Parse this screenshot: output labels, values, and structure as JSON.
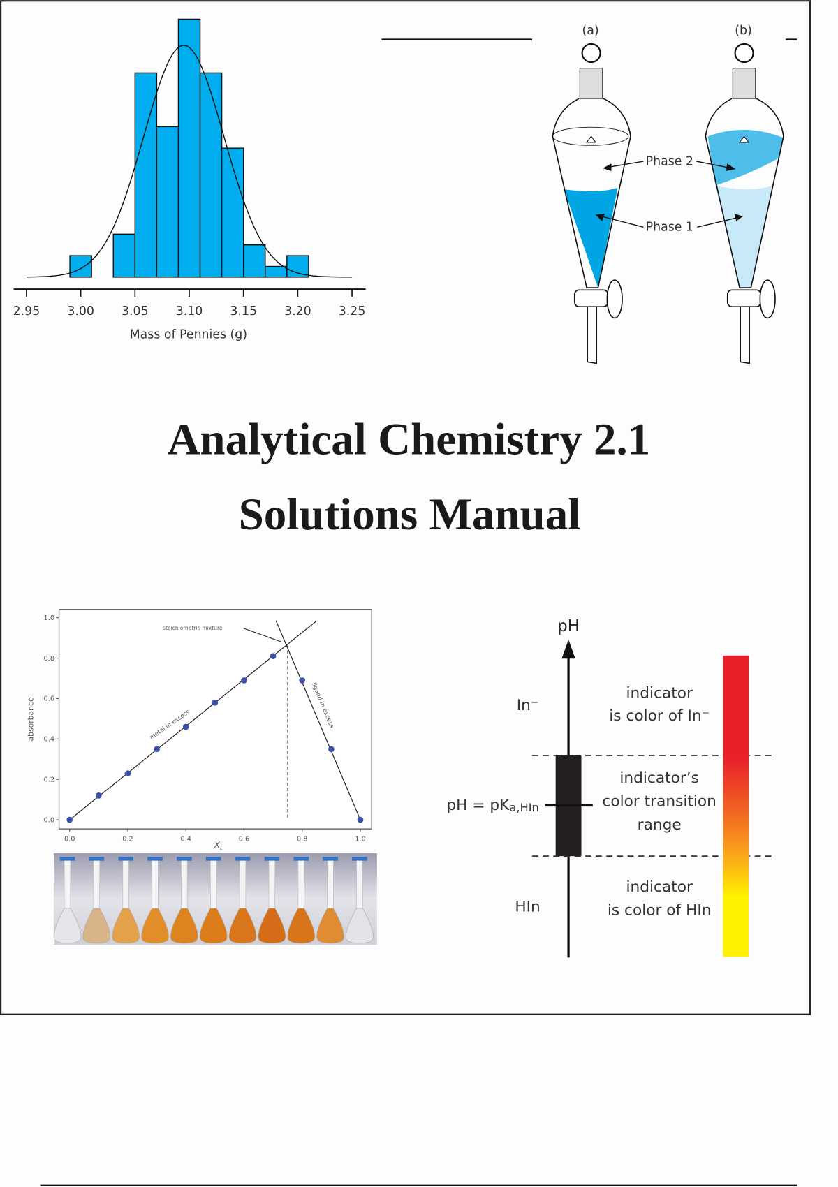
{
  "title": {
    "line1": "Analytical Chemistry 2.1",
    "line2": "Solutions Manual"
  },
  "funnels": {
    "label_a": "(a)",
    "label_b": "(b)",
    "phase2": "Phase 2",
    "phase1": "Phase 1",
    "colors": {
      "phase1_a": "#00a6e4",
      "phase2_b": "#4fbde9",
      "phase1_b": "#c7e9f8"
    }
  },
  "ph_diagram": {
    "axis_label": "pH",
    "in_minus": "In⁻",
    "hin": "HIn",
    "pka_label": "pH = pK",
    "pka_sub": "a,HIn",
    "top_text": [
      "indicator",
      "is color of In⁻"
    ],
    "mid_text": [
      "indicator’s",
      "color transition",
      "range"
    ],
    "bottom_text": [
      "indicator",
      "is color of HIn"
    ],
    "colors": {
      "top": "#e8202a",
      "mid": "#f7941d",
      "bottom": "#fff200"
    }
  },
  "chart_data": [
    {
      "type": "bar",
      "title": "",
      "xlabel": "Mass of Pennies (g)",
      "ylabel": "",
      "xlim": [
        2.95,
        3.25
      ],
      "xticks": [
        "2.95",
        "3.00",
        "3.05",
        "3.10",
        "3.15",
        "3.20",
        "3.25"
      ],
      "bin_width": 0.02,
      "bin_centers": [
        3.0,
        3.02,
        3.04,
        3.06,
        3.08,
        3.1,
        3.12,
        3.14,
        3.16,
        3.18,
        3.2
      ],
      "values": [
        2,
        0,
        4,
        19,
        14,
        24,
        19,
        12,
        3,
        1,
        2
      ],
      "fit": {
        "type": "normal",
        "mean": 3.095,
        "sd": 0.037
      },
      "color": "#00aeef"
    },
    {
      "type": "scatter",
      "title": "",
      "xlabel": "X",
      "xlabel_sub": "L",
      "ylabel": "absorbance",
      "xlim": [
        0,
        1
      ],
      "ylim": [
        0,
        1
      ],
      "xticks": [
        "0.0",
        "0.2",
        "0.4",
        "0.6",
        "0.8",
        "1.0"
      ],
      "yticks": [
        "0.0",
        "0.2",
        "0.4",
        "0.6",
        "0.8",
        "1.0"
      ],
      "x": [
        0.0,
        0.1,
        0.2,
        0.3,
        0.4,
        0.5,
        0.6,
        0.7,
        0.8,
        0.9,
        1.0
      ],
      "y": [
        0.0,
        0.12,
        0.23,
        0.35,
        0.46,
        0.58,
        0.69,
        0.81,
        0.69,
        0.35,
        0.0
      ],
      "fit_lines": [
        {
          "from": [
            0,
            0
          ],
          "to": [
            0.85,
            0.985
          ]
        },
        {
          "from": [
            0.71,
            0.985
          ],
          "to": [
            1.0,
            0.0
          ]
        }
      ],
      "stoichiometric_x": 0.75,
      "annotations": {
        "stoich": "stoichiometric mixture",
        "metal": "metal in excess",
        "ligand": "ligand in excess"
      },
      "point_color": "#3a4fa6"
    }
  ]
}
